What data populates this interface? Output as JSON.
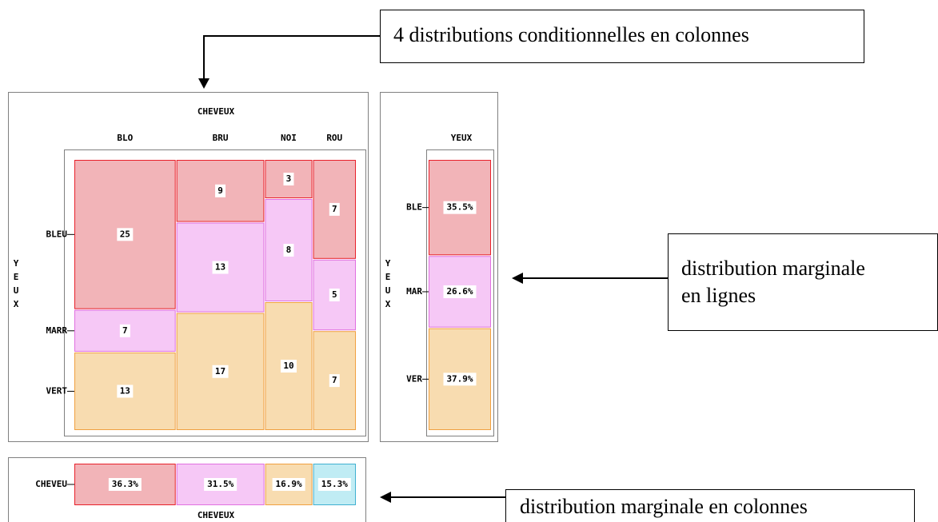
{
  "chart_data": [
    {
      "type": "mosaic",
      "title": "CHEVEUX",
      "y_label": "YEUX",
      "categories": [
        "BLO",
        "BRU",
        "NOI",
        "ROU"
      ],
      "series": [
        {
          "name": "BLEU",
          "color": "#e8202a",
          "fill": "#f2b4b8",
          "values": [
            25,
            9,
            3,
            7
          ]
        },
        {
          "name": "MARR",
          "color": "#e070e0",
          "fill": "#f6c8f6",
          "values": [
            7,
            13,
            8,
            5
          ]
        },
        {
          "name": "VERT",
          "color": "#f0a040",
          "fill": "#f8dcb0",
          "values": [
            13,
            17,
            10,
            7
          ]
        }
      ]
    },
    {
      "type": "stacked_column",
      "title": "YEUX",
      "y_label": "YEUX",
      "categories": [
        "BLE",
        "MAR",
        "VER"
      ],
      "values": [
        35.5,
        26.6,
        37.9
      ],
      "value_labels": [
        "35.5%",
        "26.6%",
        "37.9%"
      ],
      "colors": [
        "#e8202a",
        "#e070e0",
        "#f0a040"
      ],
      "fills": [
        "#f2b4b8",
        "#f6c8f6",
        "#f8dcb0"
      ]
    },
    {
      "type": "stacked_row",
      "x_label": "CHEVEUX",
      "category": "CHEVEU",
      "values": [
        36.3,
        31.5,
        16.9,
        15.3
      ],
      "value_labels": [
        "36.3%",
        "31.5%",
        "16.9%",
        "15.3%"
      ],
      "colors": [
        "#e8202a",
        "#e070e0",
        "#f0a040",
        "#40b0d0"
      ],
      "fills": [
        "#f2b4b8",
        "#f6c8f6",
        "#f8dcb0",
        "#c0ecf4"
      ]
    }
  ],
  "annotations": [
    {
      "lines": [
        "4 distributions conditionnelles en colonnes"
      ]
    },
    {
      "lines": [
        "distribution marginale",
        "en lignes"
      ]
    },
    {
      "lines": [
        "distribution marginale en colonnes"
      ]
    }
  ]
}
